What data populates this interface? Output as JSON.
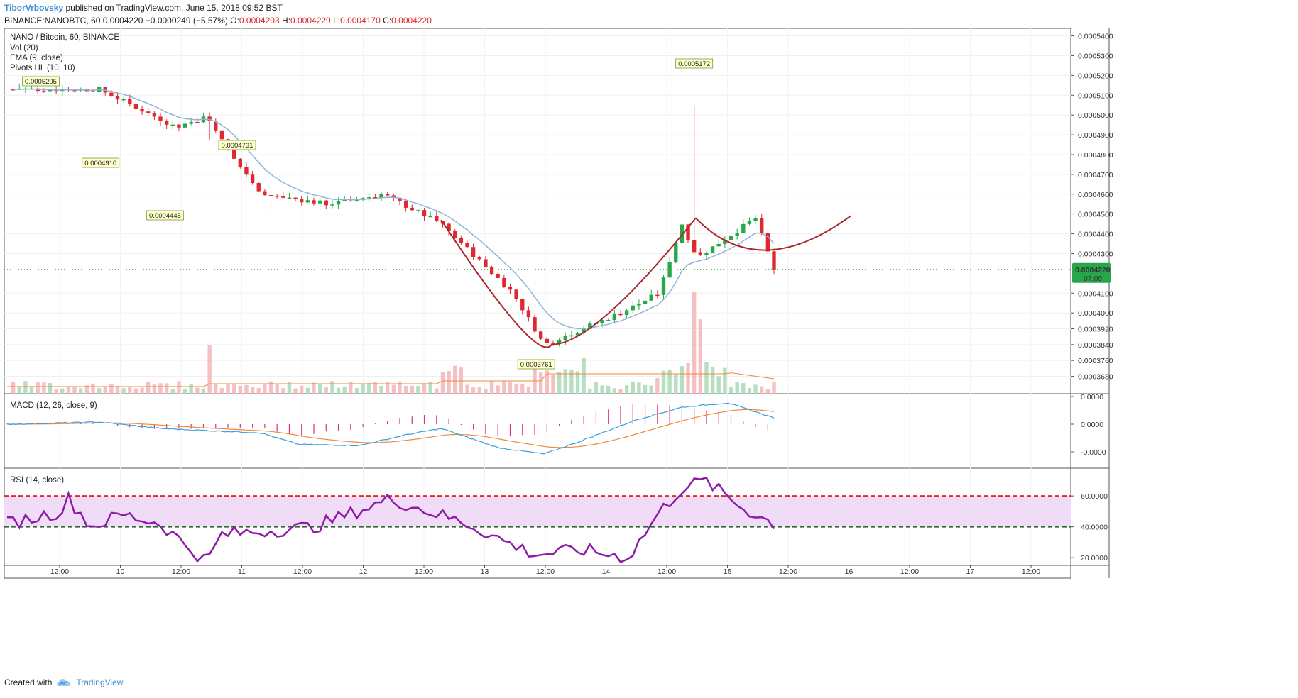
{
  "header": {
    "author": "TiborVrbovsky",
    "published": "published on TradingView.com, June 15, 2018 09:52 BST",
    "symbol": "BINANCE:NANOBTC, 60",
    "last": "0.0004220",
    "change": "−0.0000249 (−5.57%)",
    "o_label": "O:",
    "o_value": "0.0004203",
    "h_label": "H:",
    "h_value": "0.0004229",
    "l_label": "L:",
    "l_value": "0.0004170",
    "c_label": "C:",
    "c_value": "0.0004220"
  },
  "panes": {
    "main_title": "NANO / Bitcoin, 60, BINANCE",
    "vol_label": "Vol (20)",
    "ema_label": "EMA (9, close)",
    "pivots_label": "Pivots HL (10, 10)",
    "macd_label": "MACD (12, 26, close, 9)",
    "rsi_label": "RSI (14, close)"
  },
  "price_badge": {
    "value": "0.0004220",
    "countdown": "07:09"
  },
  "footer": {
    "created_with": "Created with",
    "brand": "TradingView"
  },
  "colors": {
    "up": "#27a74a",
    "down": "#e0292e",
    "ema": "#8fb4d9",
    "macd_line": "#3a9ee0",
    "signal_line": "#f08a3a",
    "hist": "#e0307a",
    "rsi": "#8e1aa8",
    "rsi_band": "#f1dcf7",
    "rsi_upper": "#e0292e",
    "rsi_lower": "#2f6e2f",
    "curve": "#a8262c",
    "badge": "#27a74a"
  },
  "chart_data": [
    {
      "type": "candlestick",
      "title": "NANO / Bitcoin, 60, BINANCE",
      "y_axis_ticks": [
        "0.0005400",
        "0.0005300",
        "0.0005200",
        "0.0005100",
        "0.0005000",
        "0.0004900",
        "0.0004800",
        "0.0004700",
        "0.0004600",
        "0.0004500",
        "0.0004400",
        "0.0004300",
        "0.0004100",
        "0.0004000",
        "0.0003920",
        "0.0003840",
        "0.0003760",
        "0.0003680"
      ],
      "x_axis_ticks": [
        "12:00",
        "10",
        "12:00",
        "11",
        "12:00",
        "12",
        "12:00",
        "13",
        "12:00",
        "14",
        "12:00",
        "15",
        "12:00",
        "16",
        "12:00",
        "17",
        "12:00"
      ],
      "ylim": [
        0.000361,
        0.000542
      ],
      "pivot_labels": [
        "0.0005205",
        "0.0004910",
        "0.0004445",
        "0.0004731",
        "0.0003761",
        "0.0005172"
      ],
      "keypoints_time": [
        0,
        60,
        110,
        130,
        165,
        210,
        245,
        283,
        330,
        350,
        400,
        425,
        440,
        450,
        488,
        500
      ],
      "keypoints_price": [
        0.000513,
        0.000513,
        0.000494,
        0.000499,
        0.00046,
        0.000455,
        0.00046,
        0.000445,
        0.00041,
        0.000384,
        0.0004,
        0.00041,
        0.000445,
        0.000428,
        0.000448,
        0.000422
      ],
      "series": [
        {
          "name": "EMA (9, close)"
        },
        {
          "name": "Vol (20)"
        }
      ],
      "annotation": "rounded cup drawn from ~0.000447 down to ~0.000384 and back up"
    },
    {
      "type": "line",
      "title": "MACD (12, 26, close, 9)",
      "y_axis_ticks": [
        "0.0000",
        "0.0000",
        "-0.0000"
      ],
      "keypoints_time": [
        0,
        60,
        100,
        130,
        165,
        190,
        230,
        260,
        283,
        320,
        350,
        370,
        410,
        440,
        470,
        500
      ],
      "keypoints_value": [
        0.0,
        0.1,
        -0.2,
        -0.3,
        -0.4,
        -0.95,
        -1.0,
        -0.5,
        -0.2,
        -1.1,
        -1.4,
        -0.9,
        0.2,
        0.8,
        1.0,
        0.3
      ],
      "series": [
        {
          "name": "MACD"
        },
        {
          "name": "Signal"
        },
        {
          "name": "Histogram"
        }
      ]
    },
    {
      "type": "line",
      "title": "RSI (14, close)",
      "y_axis_ticks": [
        "60.0000",
        "40.0000",
        "20.0000"
      ],
      "ylim": [
        15,
        78
      ],
      "band": [
        40,
        60
      ],
      "keypoints_time": [
        0,
        35,
        40,
        55,
        75,
        100,
        130,
        140,
        200,
        250,
        300,
        330,
        345,
        375,
        405,
        425,
        440,
        455,
        480,
        500
      ],
      "keypoints_value": [
        42,
        50,
        58,
        40,
        48,
        42,
        17,
        35,
        40,
        58,
        42,
        28,
        22,
        25,
        20,
        49,
        65,
        70,
        52,
        42
      ]
    }
  ]
}
